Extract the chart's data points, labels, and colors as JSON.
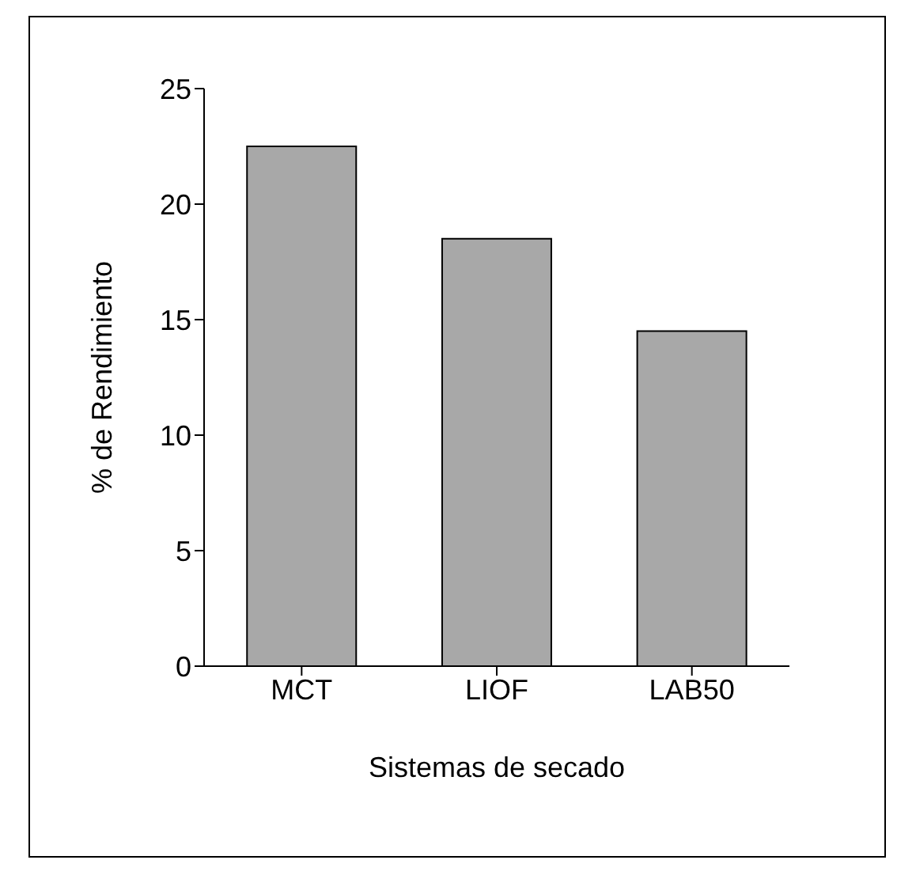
{
  "chart_data": {
    "type": "bar",
    "xlabel": "Sistemas de secado",
    "ylabel": "% de Rendimiento",
    "categories": [
      "MCT",
      "LIOF",
      "LAB50"
    ],
    "values": [
      22.5,
      18.5,
      14.5
    ],
    "color": "#a8a8a8",
    "ylim": [
      0,
      25
    ],
    "yticks": [
      0,
      5,
      10,
      15,
      20,
      25
    ],
    "grid": false
  }
}
